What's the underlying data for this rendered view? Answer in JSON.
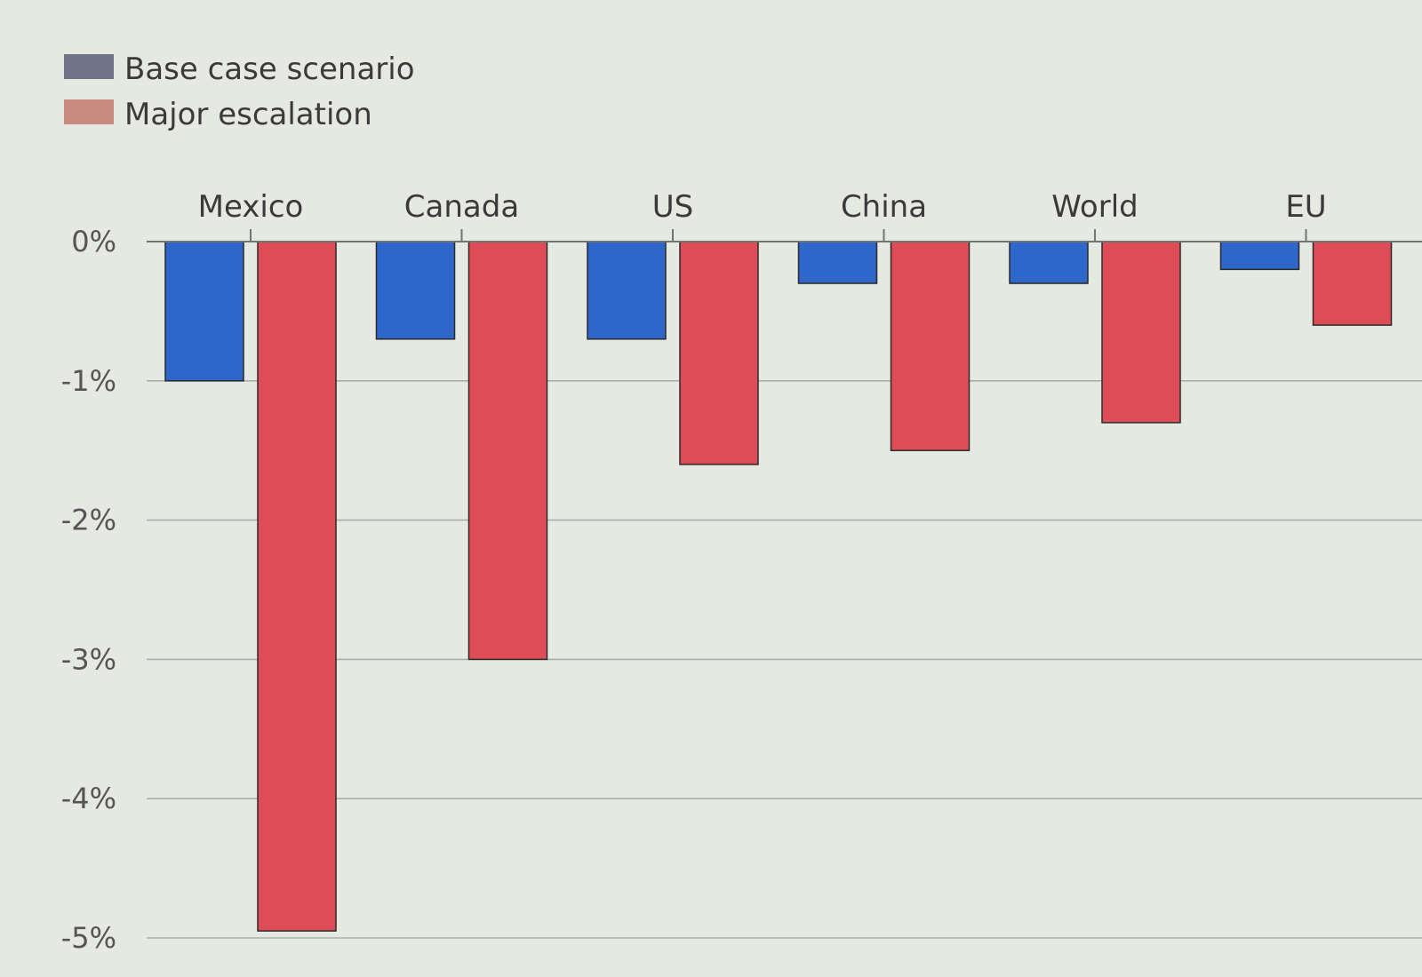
{
  "chart_data": {
    "type": "bar",
    "orientation": "vertical",
    "category_axis_position": "top",
    "categories": [
      "Mexico",
      "Canada",
      "US",
      "China",
      "World",
      "EU"
    ],
    "series": [
      {
        "name": "Base case scenario",
        "color": "#2f66c9",
        "values": [
          -1.0,
          -0.7,
          -0.7,
          -0.3,
          -0.3,
          -0.2
        ]
      },
      {
        "name": "Major escalation",
        "color": "#de4d57",
        "values": [
          -4.95,
          -3.0,
          -1.6,
          -1.5,
          -1.3,
          -0.6
        ]
      }
    ],
    "legend": {
      "placement": "top-left",
      "swatch_colors": [
        "#707489",
        "#c98a80"
      ]
    },
    "ylim": [
      -5,
      0
    ],
    "yticks": [
      0,
      -1,
      -2,
      -3,
      -4,
      -5
    ],
    "ytick_labels": [
      "0%",
      "-1%",
      "-2%",
      "-3%",
      "-4%",
      "-5%"
    ],
    "grid": true,
    "title": "",
    "xlabel": "",
    "ylabel": ""
  }
}
